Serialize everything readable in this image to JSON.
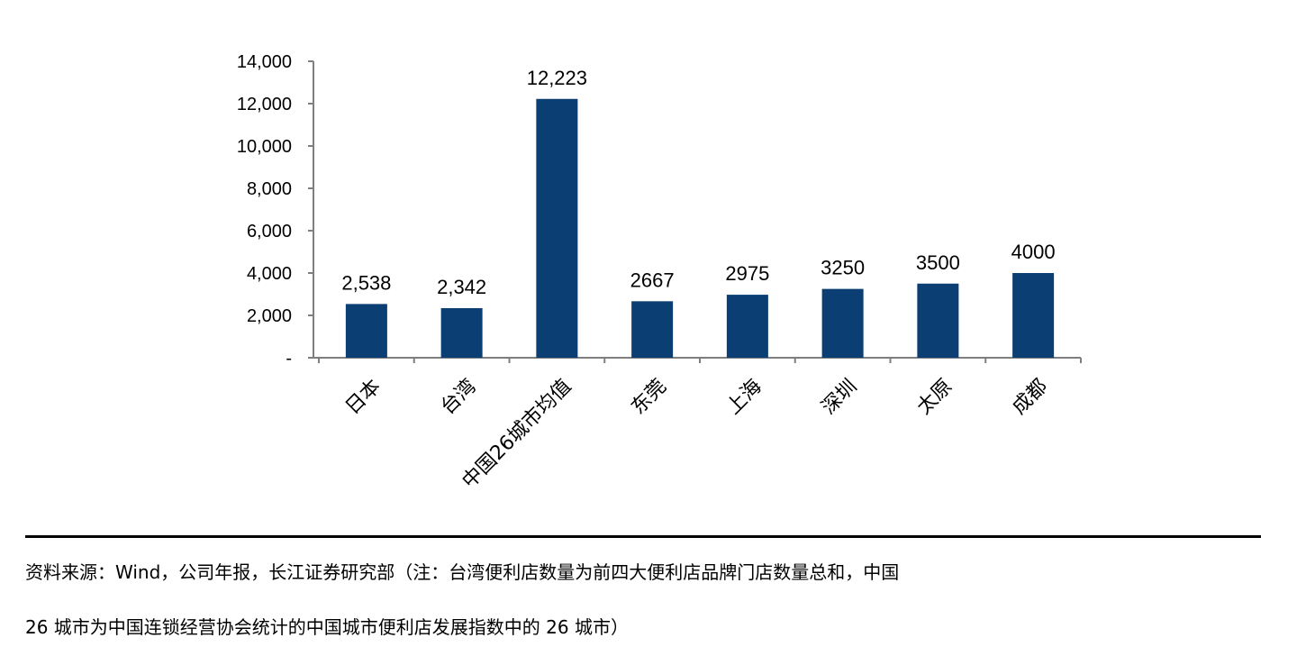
{
  "chart_data": {
    "type": "bar",
    "categories": [
      "日本",
      "台湾",
      "中国26城市均值",
      "东莞",
      "上海",
      "深圳",
      "太原",
      "成都"
    ],
    "values": [
      2538,
      2342,
      12223,
      2667,
      2975,
      3250,
      3500,
      4000
    ],
    "data_labels": [
      "2,538",
      "2,342",
      "12,223",
      "2667",
      "2975",
      "3250",
      "3500",
      "4000"
    ],
    "ylim": [
      0,
      14000
    ],
    "yticks": [
      0,
      2000,
      4000,
      6000,
      8000,
      10000,
      12000,
      14000
    ],
    "ytick_labels": [
      "-",
      "2,000",
      "4,000",
      "6,000",
      "8,000",
      "10,000",
      "12,000",
      "14,000"
    ],
    "title": "",
    "xlabel": "",
    "ylabel": "",
    "grid": false,
    "legend": "none",
    "bar_color": "#0b3f73",
    "axis_color": "#7f7f7f"
  },
  "source": {
    "line1": "资料来源：Wind，公司年报，长江证券研究部（注：台湾便利店数量为前四大便利店品牌门店数量总和，中国",
    "line2": "26 城市为中国连锁经营协会统计的中国城市便利店发展指数中的 26 城市）"
  }
}
